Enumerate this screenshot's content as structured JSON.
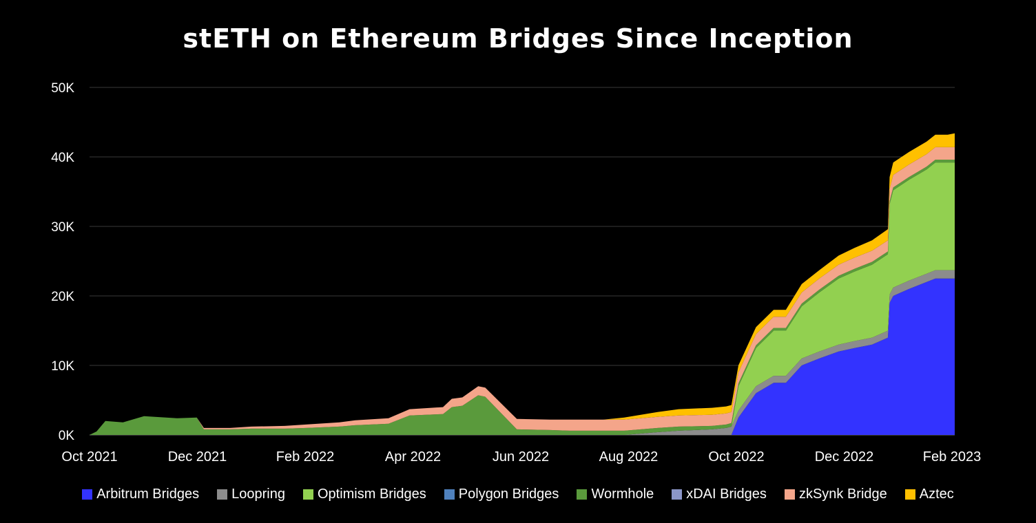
{
  "chart_data": {
    "type": "area",
    "stacked": true,
    "title": "stETH on Ethereum Bridges Since Inception",
    "xlabel": "",
    "ylabel": "",
    "x_tick_labels": [
      "Oct 2021",
      "Dec 2021",
      "Feb 2022",
      "Apr 2022",
      "Jun 2022",
      "Aug 2022",
      "Oct 2022",
      "Dec 2022",
      "Feb 2023"
    ],
    "y_tick_labels": [
      "0K",
      "10K",
      "20K",
      "30K",
      "40K",
      "50K"
    ],
    "y_ticks": [
      0,
      10000,
      20000,
      30000,
      40000,
      50000
    ],
    "ylim": [
      0,
      50000
    ],
    "grid": true,
    "legend_position": "bottom",
    "x": [
      "2021-10-01",
      "2021-10-05",
      "2021-10-10",
      "2021-10-20",
      "2021-11-01",
      "2021-11-20",
      "2021-12-01",
      "2021-12-05",
      "2021-12-20",
      "2022-01-01",
      "2022-01-20",
      "2022-02-01",
      "2022-02-20",
      "2022-03-01",
      "2022-03-20",
      "2022-04-01",
      "2022-04-20",
      "2022-04-25",
      "2022-05-01",
      "2022-05-10",
      "2022-05-14",
      "2022-06-01",
      "2022-06-20",
      "2022-07-01",
      "2022-07-20",
      "2022-08-01",
      "2022-08-20",
      "2022-09-01",
      "2022-09-20",
      "2022-09-28",
      "2022-10-01",
      "2022-10-05",
      "2022-10-15",
      "2022-10-25",
      "2022-11-01",
      "2022-11-10",
      "2022-11-20",
      "2022-12-01",
      "2022-12-10",
      "2022-12-20",
      "2022-12-29",
      "2022-12-30",
      "2023-01-01",
      "2023-01-10",
      "2023-01-20",
      "2023-01-25",
      "2023-02-01",
      "2023-02-05"
    ],
    "series": [
      {
        "name": "Arbitrum Bridges",
        "color": "#3333ff",
        "values": [
          0,
          0,
          0,
          0,
          0,
          0,
          0,
          0,
          0,
          0,
          0,
          0,
          0,
          0,
          0,
          0,
          0,
          0,
          0,
          0,
          0,
          0,
          0,
          0,
          0,
          0,
          0,
          0,
          0,
          0,
          0,
          2500,
          6000,
          7500,
          7500,
          10000,
          11000,
          12000,
          12500,
          13000,
          14000,
          19000,
          20000,
          21000,
          22000,
          22500,
          22500,
          22500
        ]
      },
      {
        "name": "Loopring",
        "color": "#8c8c8c",
        "values": [
          0,
          0,
          0,
          0,
          0,
          0,
          0,
          0,
          0,
          0,
          0,
          0,
          0,
          0,
          0,
          0,
          0,
          0,
          0,
          0,
          0,
          0,
          0,
          0,
          0,
          0,
          400,
          600,
          800,
          1000,
          1200,
          1000,
          1000,
          1000,
          1000,
          1000,
          1000,
          1000,
          1000,
          1000,
          1000,
          1200,
          1200,
          1200,
          1200,
          1200,
          1200,
          1200
        ]
      },
      {
        "name": "Optimism Bridges",
        "color": "#92d050",
        "values": [
          0,
          0,
          0,
          0,
          0,
          0,
          0,
          0,
          0,
          0,
          0,
          0,
          0,
          0,
          0,
          0,
          0,
          0,
          0,
          0,
          0,
          0,
          0,
          0,
          0,
          0,
          0,
          0,
          0,
          0,
          0,
          3500,
          5500,
          6500,
          6500,
          7500,
          8500,
          9500,
          10000,
          10500,
          11000,
          13000,
          14000,
          14500,
          15000,
          15500,
          15500,
          15500
        ]
      },
      {
        "name": "Polygon Bridges",
        "color": "#4f81bd",
        "values": [
          0,
          0,
          0,
          0,
          0,
          0,
          0,
          0,
          0,
          0,
          0,
          0,
          0,
          0,
          0,
          0,
          0,
          0,
          0,
          0,
          0,
          0,
          0,
          0,
          0,
          0,
          0,
          0,
          0,
          0,
          0,
          0,
          0,
          0,
          0,
          0,
          0,
          0,
          0,
          0,
          0,
          0,
          0,
          0,
          0,
          0,
          0,
          0
        ]
      },
      {
        "name": "Wormhole",
        "color": "#5a9a3c",
        "values": [
          0,
          500,
          2000,
          1800,
          2700,
          2400,
          2500,
          800,
          800,
          900,
          900,
          1000,
          1200,
          1400,
          1600,
          2800,
          3000,
          4000,
          4200,
          5700,
          5500,
          800,
          700,
          600,
          600,
          600,
          600,
          600,
          500,
          500,
          500,
          400,
          400,
          400,
          400,
          400,
          400,
          400,
          400,
          400,
          400,
          400,
          400,
          400,
          400,
          400,
          400,
          400
        ]
      },
      {
        "name": "xDAI Bridges",
        "color": "#8b96c8",
        "values": [
          0,
          0,
          0,
          0,
          0,
          0,
          0,
          0,
          0,
          0,
          0,
          0,
          0,
          0,
          0,
          0,
          0,
          0,
          0,
          0,
          0,
          0,
          0,
          0,
          0,
          0,
          0,
          0,
          0,
          0,
          0,
          0,
          0,
          0,
          0,
          0,
          0,
          0,
          0,
          0,
          0,
          0,
          0,
          0,
          0,
          0,
          0,
          0
        ]
      },
      {
        "name": "zkSynk Bridge",
        "color": "#f4a58a",
        "values": [
          0,
          0,
          0,
          0,
          0,
          0,
          0,
          200,
          200,
          300,
          400,
          500,
          600,
          700,
          800,
          900,
          1000,
          1200,
          1200,
          1300,
          1300,
          1500,
          1500,
          1600,
          1600,
          1600,
          1600,
          1600,
          1600,
          1600,
          1600,
          1600,
          1600,
          1600,
          1600,
          1600,
          1600,
          1600,
          1600,
          1600,
          1600,
          1800,
          1800,
          1800,
          1800,
          1800,
          1800,
          1800
        ]
      },
      {
        "name": "Aztec",
        "color": "#ffc000",
        "values": [
          0,
          0,
          0,
          0,
          0,
          0,
          0,
          0,
          0,
          0,
          0,
          0,
          0,
          0,
          0,
          0,
          0,
          0,
          0,
          0,
          0,
          0,
          0,
          0,
          0,
          300,
          700,
          900,
          1000,
          1000,
          1000,
          1000,
          1000,
          1000,
          1000,
          1200,
          1200,
          1300,
          1400,
          1500,
          1600,
          1700,
          1800,
          1800,
          1800,
          1800,
          1800,
          2000
        ]
      }
    ]
  }
}
